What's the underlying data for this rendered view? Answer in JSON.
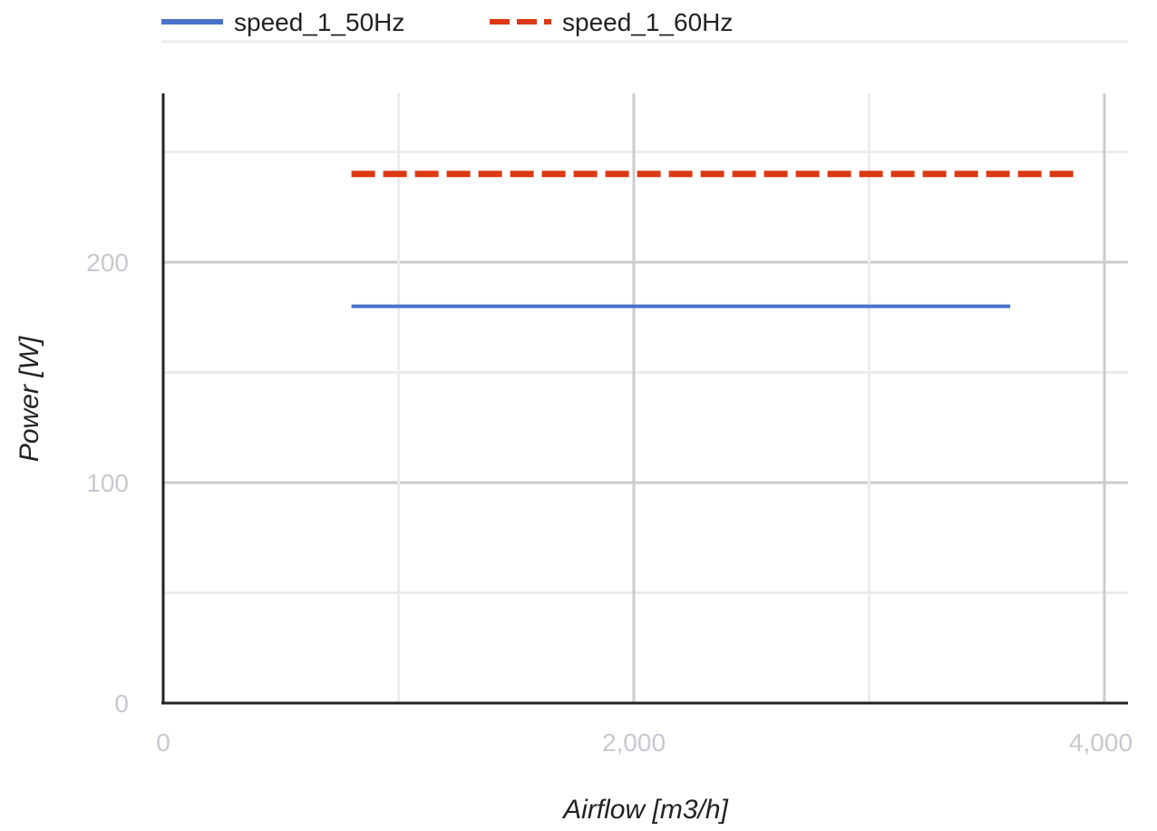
{
  "chart_data": {
    "type": "line",
    "xlabel": "Airflow [m3/h]",
    "ylabel": "Power [W]",
    "xlim": [
      0,
      4100
    ],
    "ylim": [
      0,
      270
    ],
    "x_ticks": [
      0,
      2000,
      4000
    ],
    "x_tick_labels": [
      "0",
      "2,000",
      "4,000"
    ],
    "x_minor_gridlines": [
      1000,
      3000
    ],
    "y_ticks": [
      0,
      100,
      200
    ],
    "y_tick_labels": [
      "0",
      "100",
      "200"
    ],
    "y_minor_gridlines": [
      50,
      150,
      250
    ],
    "grid": true,
    "legend_position": "top",
    "series": [
      {
        "name": "speed_1_50Hz",
        "color": "#4a72c9",
        "style": "solid",
        "x": [
          800,
          3600
        ],
        "y": [
          180,
          180
        ]
      },
      {
        "name": "speed_1_60Hz",
        "color": "#dc3912",
        "style": "dashed",
        "x": [
          800,
          3900
        ],
        "y": [
          240,
          240
        ]
      }
    ]
  }
}
